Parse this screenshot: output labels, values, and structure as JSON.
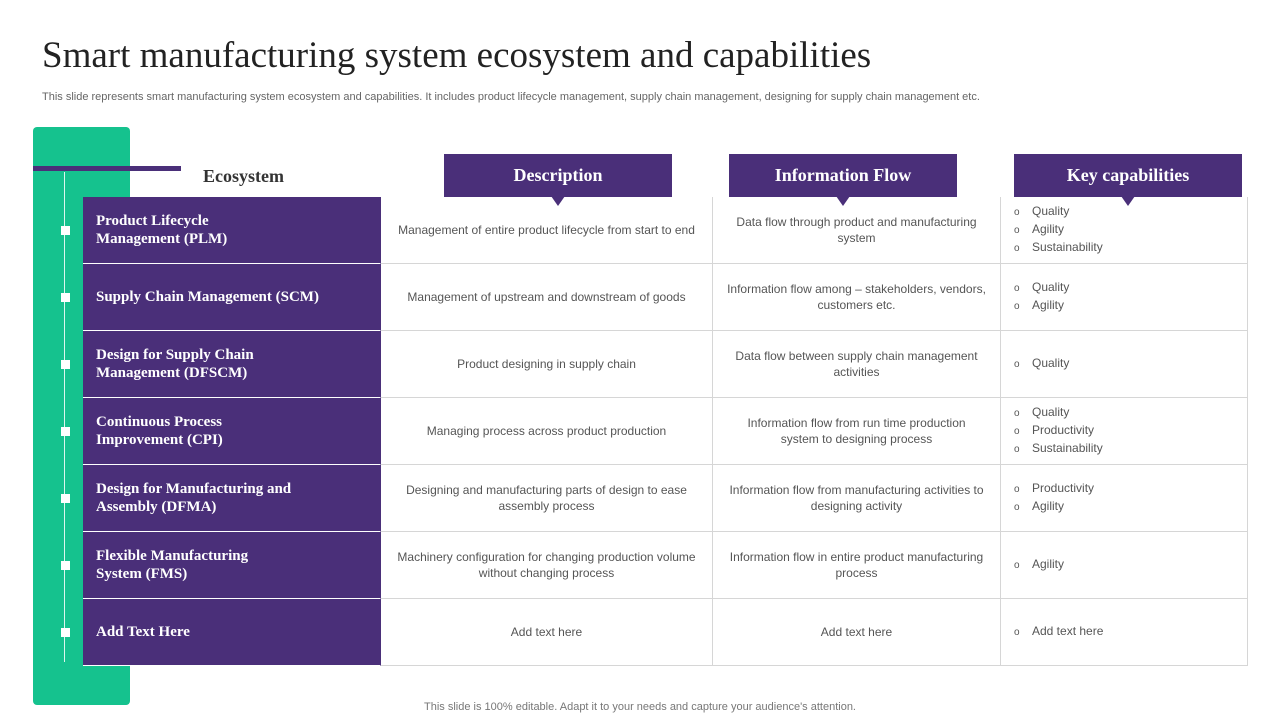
{
  "title": "Smart manufacturing system ecosystem and capabilities",
  "subtitle": "This slide represents smart manufacturing system ecosystem and capabilities. It includes product lifecycle management, supply chain management, designing for supply chain management etc.",
  "ecosystem_label": "Ecosystem",
  "headers": {
    "description": "Description",
    "information_flow": "Information Flow",
    "key_capabilities": "Key capabilities"
  },
  "rows": [
    {
      "ecosystem": "Product Lifecycle\nManagement (PLM)",
      "description": "Management of entire product lifecycle from start to end",
      "information_flow": "Data flow through product and manufacturing system",
      "capabilities": [
        "Quality",
        "Agility",
        "Sustainability"
      ]
    },
    {
      "ecosystem": "Supply Chain Management (SCM)",
      "description": "Management of upstream and downstream of goods",
      "information_flow": "Information flow among – stakeholders, vendors, customers etc.",
      "capabilities": [
        "Quality",
        "Agility"
      ]
    },
    {
      "ecosystem": "Design for Supply Chain\nManagement (DFSCM)",
      "description": "Product designing in supply chain",
      "information_flow": "Data flow between supply chain management activities",
      "capabilities": [
        "Quality"
      ]
    },
    {
      "ecosystem": "Continuous Process\nImprovement (CPI)",
      "description": "Managing process across product production",
      "information_flow": "Information flow from run time production system to designing process",
      "capabilities": [
        "Quality",
        "Productivity",
        "Sustainability"
      ]
    },
    {
      "ecosystem": "Design for Manufacturing and\nAssembly (DFMA)",
      "description": "Designing and manufacturing parts of design to ease assembly process",
      "information_flow": "Information flow from manufacturing activities to designing activity",
      "capabilities": [
        "Productivity",
        "Agility"
      ]
    },
    {
      "ecosystem": "Flexible Manufacturing\nSystem (FMS)",
      "description": "Machinery configuration for changing production volume without changing process",
      "information_flow": "Information flow in entire product manufacturing process",
      "capabilities": [
        "Agility"
      ]
    },
    {
      "ecosystem": "Add Text Here",
      "description": "Add text here",
      "information_flow": "Add text here",
      "capabilities": [
        "Add text here"
      ]
    }
  ],
  "footer": "This slide is 100% editable. Adapt it to your needs and capture your audience's attention.",
  "colors": {
    "purple": "#4a2f79",
    "green": "#15c28e"
  }
}
